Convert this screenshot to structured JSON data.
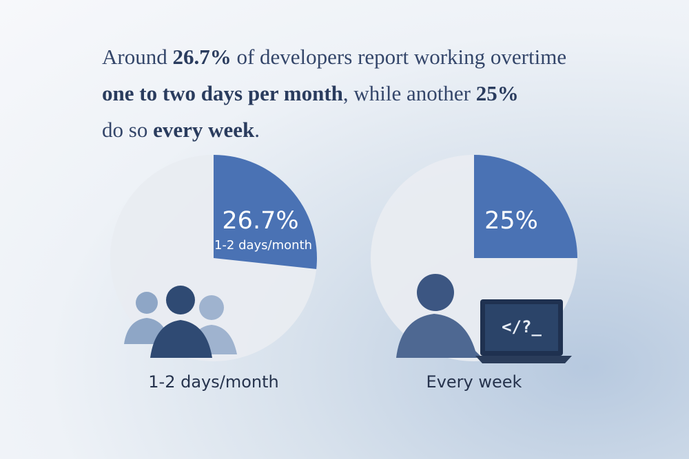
{
  "headline": [
    [
      {
        "text": "Around ",
        "bold": false
      },
      {
        "text": "26.7%",
        "bold": true
      },
      {
        "text": " of developers report working overtime",
        "bold": false
      }
    ],
    [
      {
        "text": "one to two days per month",
        "bold": true
      },
      {
        "text": ", while another ",
        "bold": false
      },
      {
        "text": "25%",
        "bold": true
      }
    ],
    [
      {
        "text": "do so ",
        "bold": false
      },
      {
        "text": "every week",
        "bold": true
      },
      {
        "text": ".",
        "bold": false
      }
    ]
  ],
  "chart_data": [
    {
      "type": "pie",
      "title": "1-2 days/month",
      "categories": [
        "1-2 days/month"
      ],
      "values": [
        26.7
      ],
      "value_labels": [
        "26.7%"
      ],
      "color": "#4a72b4"
    },
    {
      "type": "pie",
      "title": "Every week",
      "values": [
        25
      ],
      "value_labels": [
        "25%"
      ],
      "color": "#4a72b4"
    }
  ]
}
